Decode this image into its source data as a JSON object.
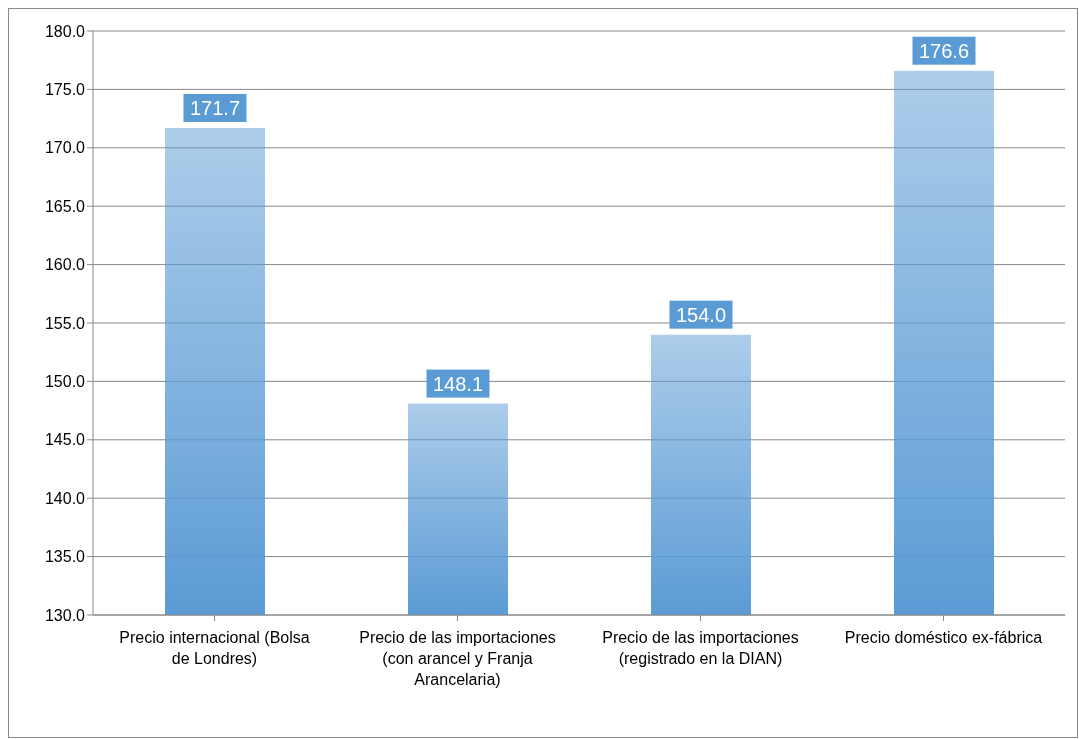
{
  "chart_data": {
    "type": "bar",
    "categories": [
      "Precio internacional (Bolsa de Londres)",
      "Precio de las importaciones (con arancel y Franja Arancelaria)",
      "Precio de las importaciones (registrado en la DIAN)",
      "Precio doméstico ex-fábrica"
    ],
    "values": [
      171.7,
      148.1,
      154.0,
      176.6
    ],
    "color": "#5b9bd5",
    "ylim": [
      130,
      180
    ],
    "yticks": [
      {
        "value": 130,
        "label": "130.0"
      },
      {
        "value": 135,
        "label": "135.0"
      },
      {
        "value": 140,
        "label": "140.0"
      },
      {
        "value": 145,
        "label": "145.0"
      },
      {
        "value": 150,
        "label": "150.0"
      },
      {
        "value": 155,
        "label": "155.0"
      },
      {
        "value": 160,
        "label": "160.0"
      },
      {
        "value": 165,
        "label": "165.0"
      },
      {
        "value": 170,
        "label": "170.0"
      },
      {
        "value": 175,
        "label": "175.0"
      },
      {
        "value": 180,
        "label": "180.0"
      }
    ],
    "value_labels": [
      "171.7",
      "148.1",
      "154.0",
      "176.6"
    ],
    "grid": "y",
    "legend": false
  }
}
